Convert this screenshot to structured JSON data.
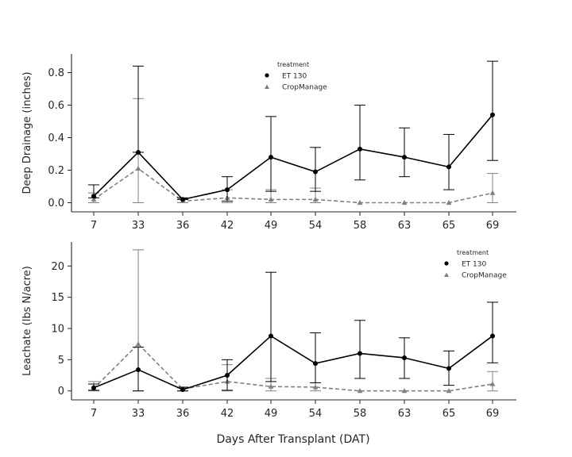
{
  "xlabel": "Days After Transplant (DAT)",
  "colors": {
    "et130": "#000000",
    "cropmanage": "#808080"
  },
  "chart_data": [
    {
      "type": "line",
      "categories": [
        "7",
        "33",
        "36",
        "42",
        "49",
        "54",
        "58",
        "63",
        "65",
        "69"
      ],
      "ylabel": "Deep Drainage (inches)",
      "ylim": [
        -0.05,
        0.9
      ],
      "yticks": [
        "0.0",
        "0.2",
        "0.4",
        "0.6",
        "0.8"
      ],
      "legend": {
        "title": "treatment",
        "position": "top-center"
      },
      "grid": false,
      "series": [
        {
          "name": "ET 130",
          "marker": "circle",
          "style": "solid",
          "values": [
            0.04,
            0.31,
            0.02,
            0.08,
            0.28,
            0.19,
            0.33,
            0.28,
            0.22,
            0.54
          ],
          "err_low": [
            0.03,
            0.31,
            0.02,
            0.01,
            0.07,
            0.07,
            0.14,
            0.16,
            0.08,
            0.26
          ],
          "err_high": [
            0.11,
            0.84,
            0.03,
            0.16,
            0.53,
            0.34,
            0.6,
            0.46,
            0.42,
            0.87
          ]
        },
        {
          "name": "CropManage",
          "marker": "triangle",
          "style": "dashed",
          "values": [
            0.02,
            0.21,
            0.01,
            0.03,
            0.02,
            0.02,
            0.0,
            0.0,
            0.0,
            0.06
          ],
          "err_low": [
            0.0,
            0.0,
            0.0,
            0.0,
            0.0,
            0.0,
            0.0,
            0.0,
            0.0,
            0.0
          ],
          "err_high": [
            0.06,
            0.64,
            0.02,
            0.08,
            0.08,
            0.09,
            0.0,
            0.0,
            0.0,
            0.18
          ]
        }
      ]
    },
    {
      "type": "line",
      "categories": [
        "7",
        "33",
        "36",
        "42",
        "49",
        "54",
        "58",
        "63",
        "65",
        "69"
      ],
      "ylabel": "Leachate (lbs N/acre)",
      "ylim": [
        -1.5,
        24
      ],
      "yticks": [
        "0",
        "5",
        "10",
        "15",
        "20"
      ],
      "legend": {
        "title": "treatment",
        "position": "top-right"
      },
      "grid": false,
      "series": [
        {
          "name": "ET 130",
          "marker": "circle",
          "style": "solid",
          "values": [
            0.5,
            3.4,
            0.2,
            2.5,
            8.8,
            4.4,
            6.0,
            5.3,
            3.6,
            8.8
          ],
          "err_low": [
            0.1,
            0.0,
            0.0,
            0.1,
            1.5,
            1.3,
            2.0,
            2.0,
            0.9,
            4.5
          ],
          "err_high": [
            1.1,
            7.0,
            0.6,
            5.0,
            19.0,
            9.3,
            11.3,
            8.5,
            6.4,
            14.2
          ]
        },
        {
          "name": "CropManage",
          "marker": "triangle",
          "style": "dashed",
          "values": [
            0.4,
            7.5,
            0.3,
            1.5,
            0.7,
            0.6,
            0.0,
            0.0,
            0.0,
            1.1
          ],
          "err_low": [
            0.0,
            0.0,
            0.0,
            0.0,
            0.0,
            0.0,
            0.0,
            0.0,
            0.0,
            0.0
          ],
          "err_high": [
            1.5,
            22.6,
            0.5,
            4.2,
            2.0,
            1.3,
            0.0,
            0.0,
            0.0,
            3.1
          ]
        }
      ]
    }
  ]
}
